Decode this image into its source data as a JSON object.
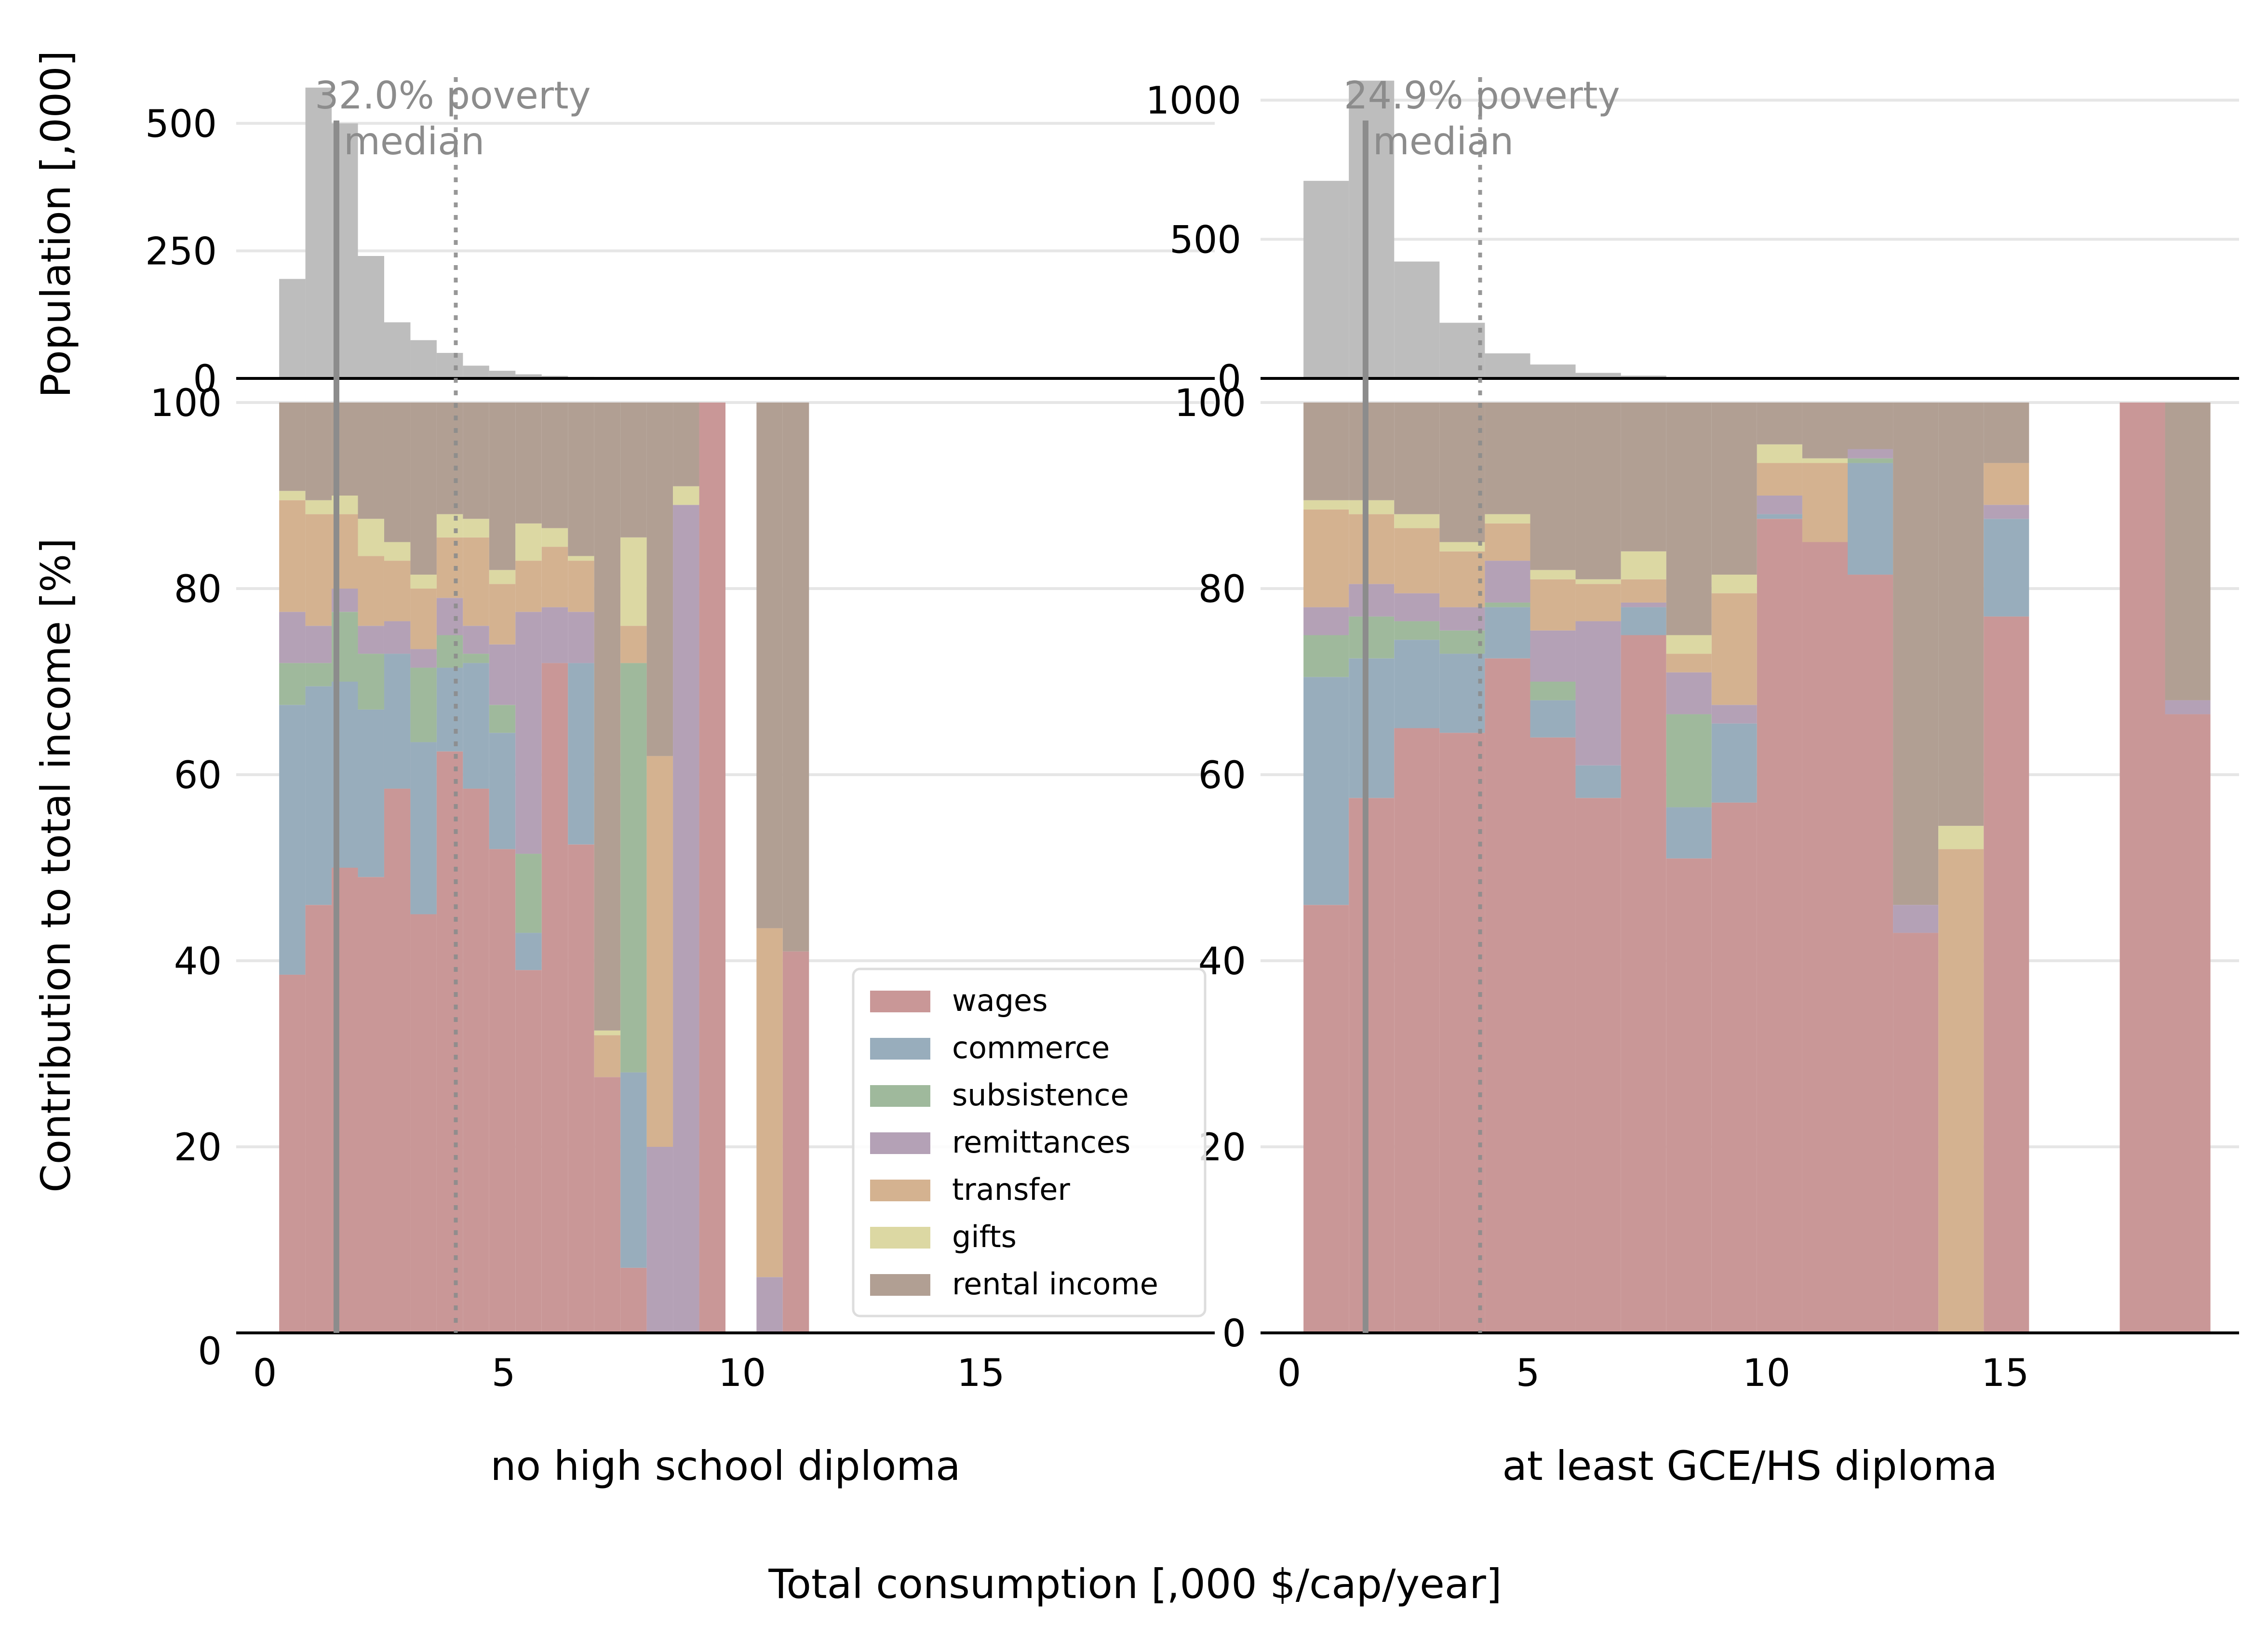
{
  "figure": {
    "ylabel_top": "Population [,000]",
    "ylabel_bottom": "Contribution to total income [%]",
    "xlabel": "Total consumption [,000 $/cap/year]"
  },
  "legend": {
    "placement": "lower-right of left panel",
    "entries": [
      "wages",
      "commerce",
      "subsistence",
      "remittances",
      "transfer",
      "gifts",
      "rental income"
    ]
  },
  "colors": {
    "wages": "#c99797",
    "commerce": "#98adbc",
    "subsistence": "#9fb99c",
    "remittances": "#b4a1b6",
    "transfer": "#d4b290",
    "gifts": "#dcd8a3",
    "rental income": "#b19f93",
    "histogram": "#bdbdbd",
    "poverty_line": "#8c8c8c",
    "median_line": "#8c8c8c",
    "annotation": "#8c8c8c",
    "grid": "#e6e6e6"
  },
  "chart_data": [
    {
      "type": "bar",
      "subtitle": "no high school diploma",
      "histogram": {
        "ylim": [
          0,
          600
        ],
        "yticks": [
          0,
          250,
          500
        ],
        "bin_width": 0.55,
        "bin_starts": [
          0.3,
          0.85,
          1.4,
          1.95,
          2.5,
          3.05,
          3.6,
          4.15,
          4.7,
          5.25,
          5.8,
          6.35
        ],
        "values": [
          195,
          570,
          500,
          240,
          110,
          75,
          50,
          25,
          15,
          8,
          5,
          3
        ]
      },
      "annotation": {
        "text_line1": "32.0% poverty",
        "text_line2": "median",
        "poverty_x": 1.5,
        "median_x": 4.0
      },
      "stack": {
        "ylim": [
          0,
          100
        ],
        "yticks": [
          0,
          20,
          40,
          60,
          80,
          100
        ],
        "xticks": [
          0,
          5,
          10,
          15
        ],
        "xlim": [
          -0.6,
          19.9
        ],
        "series_order": [
          "wages",
          "commerce",
          "subsistence",
          "remittances",
          "transfer",
          "gifts",
          "rental income"
        ],
        "bins": [
          {
            "x0": 0.3,
            "x1": 0.85,
            "wages": 38.5,
            "commerce": 29,
            "subsistence": 4.5,
            "remittances": 5.5,
            "transfer": 12,
            "gifts": 1,
            "rental income": 9.5
          },
          {
            "x0": 0.85,
            "x1": 1.4,
            "wages": 46,
            "commerce": 23.5,
            "subsistence": 2.5,
            "remittances": 4,
            "transfer": 12,
            "gifts": 1.5,
            "rental income": 10.5
          },
          {
            "x0": 1.4,
            "x1": 1.95,
            "wages": 50,
            "commerce": 20,
            "subsistence": 7.5,
            "remittances": 2.5,
            "transfer": 8,
            "gifts": 2,
            "rental income": 10
          },
          {
            "x0": 1.95,
            "x1": 2.5,
            "wages": 49,
            "commerce": 18,
            "subsistence": 6,
            "remittances": 3,
            "transfer": 7.5,
            "gifts": 4,
            "rental income": 12.5
          },
          {
            "x0": 2.5,
            "x1": 3.05,
            "wages": 58.5,
            "commerce": 14.5,
            "subsistence": 0,
            "remittances": 3.5,
            "transfer": 6.5,
            "gifts": 2,
            "rental income": 15
          },
          {
            "x0": 3.05,
            "x1": 3.6,
            "wages": 45,
            "commerce": 18.5,
            "subsistence": 8,
            "remittances": 2,
            "transfer": 6.5,
            "gifts": 1.5,
            "rental income": 18.5
          },
          {
            "x0": 3.6,
            "x1": 4.15,
            "wages": 62.5,
            "commerce": 9,
            "subsistence": 3.5,
            "remittances": 4,
            "transfer": 6.5,
            "gifts": 2.5,
            "rental income": 12
          },
          {
            "x0": 4.15,
            "x1": 4.7,
            "wages": 58.5,
            "commerce": 13.5,
            "subsistence": 1,
            "remittances": 3,
            "transfer": 9.5,
            "gifts": 2,
            "rental income": 12.5
          },
          {
            "x0": 4.7,
            "x1": 5.25,
            "wages": 52,
            "commerce": 12.5,
            "subsistence": 3,
            "remittances": 6.5,
            "transfer": 6.5,
            "gifts": 1.5,
            "rental income": 18
          },
          {
            "x0": 5.25,
            "x1": 5.8,
            "wages": 39,
            "commerce": 4,
            "subsistence": 8.5,
            "remittances": 26,
            "transfer": 5.5,
            "gifts": 4,
            "rental income": 13
          },
          {
            "x0": 5.8,
            "x1": 6.35,
            "wages": 72,
            "commerce": 0,
            "subsistence": 0,
            "remittances": 6,
            "transfer": 6.5,
            "gifts": 2,
            "rental income": 13.5
          },
          {
            "x0": 6.35,
            "x1": 6.9,
            "wages": 52.5,
            "commerce": 19.5,
            "subsistence": 0,
            "remittances": 5.5,
            "transfer": 5.5,
            "gifts": 0.5,
            "rental income": 16.5
          },
          {
            "x0": 6.9,
            "x1": 7.45,
            "wages": 27.5,
            "commerce": 0,
            "subsistence": 0,
            "remittances": 0,
            "transfer": 4.5,
            "gifts": 0.5,
            "rental income": 67.5
          },
          {
            "x0": 7.45,
            "x1": 8.0,
            "wages": 7,
            "commerce": 21,
            "subsistence": 44,
            "remittances": 0,
            "transfer": 4,
            "gifts": 9.5,
            "rental income": 14.5
          },
          {
            "x0": 8.0,
            "x1": 8.55,
            "wages": 0,
            "commerce": 0,
            "subsistence": 0,
            "remittances": 20,
            "transfer": 42,
            "gifts": 0,
            "rental income": 38
          },
          {
            "x0": 8.55,
            "x1": 9.1,
            "wages": 0,
            "commerce": 0,
            "subsistence": 0,
            "remittances": 89,
            "transfer": 0,
            "gifts": 2,
            "rental income": 9
          },
          {
            "x0": 9.1,
            "x1": 9.65,
            "wages": 100,
            "commerce": 0,
            "subsistence": 0,
            "remittances": 0,
            "transfer": 0,
            "gifts": 0,
            "rental income": 0
          },
          {
            "x0": 10.3,
            "x1": 10.85,
            "wages": 0,
            "commerce": 0,
            "subsistence": 0,
            "remittances": 6,
            "transfer": 37.5,
            "gifts": 0,
            "rental income": 56.5
          },
          {
            "x0": 10.85,
            "x1": 11.4,
            "wages": 41,
            "commerce": 0,
            "subsistence": 0,
            "remittances": 0,
            "transfer": 0,
            "gifts": 0,
            "rental income": 59
          }
        ]
      }
    },
    {
      "type": "bar",
      "subtitle": "at least GCE/HS diploma",
      "histogram": {
        "ylim": [
          0,
          1100
        ],
        "yticks": [
          0,
          500,
          1000
        ],
        "bin_width": 0.95,
        "bin_starts": [
          0.3,
          1.25,
          2.2,
          3.15,
          4.1,
          5.05,
          6.0,
          6.95,
          7.9,
          8.85
        ],
        "values": [
          710,
          1070,
          420,
          200,
          90,
          50,
          20,
          10,
          5,
          3
        ]
      },
      "annotation": {
        "text_line1": "24.9% poverty",
        "text_line2": "median",
        "poverty_x": 1.6,
        "median_x": 4.0
      },
      "stack": {
        "ylim": [
          0,
          100
        ],
        "yticks": [
          0,
          20,
          40,
          60,
          80,
          100
        ],
        "xticks": [
          0,
          5,
          10,
          15
        ],
        "xlim": [
          -0.6,
          19.9
        ],
        "series_order": [
          "wages",
          "commerce",
          "subsistence",
          "remittances",
          "transfer",
          "gifts",
          "rental income"
        ],
        "bins": [
          {
            "x0": 0.3,
            "x1": 1.25,
            "wages": 46,
            "commerce": 24.5,
            "subsistence": 4.5,
            "remittances": 3,
            "transfer": 10.5,
            "gifts": 1,
            "rental income": 10.5
          },
          {
            "x0": 1.25,
            "x1": 2.2,
            "wages": 57.5,
            "commerce": 15,
            "subsistence": 4.5,
            "remittances": 3.5,
            "transfer": 7.5,
            "gifts": 1.5,
            "rental income": 10.5
          },
          {
            "x0": 2.2,
            "x1": 3.15,
            "wages": 65,
            "commerce": 9.5,
            "subsistence": 2,
            "remittances": 3,
            "transfer": 7,
            "gifts": 1.5,
            "rental income": 12
          },
          {
            "x0": 3.15,
            "x1": 4.1,
            "wages": 64.5,
            "commerce": 8.5,
            "subsistence": 2.5,
            "remittances": 2.5,
            "transfer": 6,
            "gifts": 1,
            "rental income": 15
          },
          {
            "x0": 4.1,
            "x1": 5.05,
            "wages": 72.5,
            "commerce": 5.5,
            "subsistence": 0.5,
            "remittances": 4.5,
            "transfer": 4,
            "gifts": 1,
            "rental income": 12
          },
          {
            "x0": 5.05,
            "x1": 6.0,
            "wages": 64,
            "commerce": 4,
            "subsistence": 2,
            "remittances": 5.5,
            "transfer": 5.5,
            "gifts": 1,
            "rental income": 18
          },
          {
            "x0": 6.0,
            "x1": 6.95,
            "wages": 57.5,
            "commerce": 3.5,
            "subsistence": 0,
            "remittances": 15.5,
            "transfer": 4,
            "gifts": 0.5,
            "rental income": 19
          },
          {
            "x0": 6.95,
            "x1": 7.9,
            "wages": 75,
            "commerce": 3,
            "subsistence": 0,
            "remittances": 0.5,
            "transfer": 2.5,
            "gifts": 3,
            "rental income": 16
          },
          {
            "x0": 7.9,
            "x1": 8.85,
            "wages": 51,
            "commerce": 5.5,
            "subsistence": 10,
            "remittances": 4.5,
            "transfer": 2,
            "gifts": 2,
            "rental income": 25
          },
          {
            "x0": 8.85,
            "x1": 9.8,
            "wages": 57,
            "commerce": 8.5,
            "subsistence": 0,
            "remittances": 2,
            "transfer": 12,
            "gifts": 2,
            "rental income": 18.5
          },
          {
            "x0": 9.8,
            "x1": 10.75,
            "wages": 87.5,
            "commerce": 0.5,
            "subsistence": 0,
            "remittances": 2,
            "transfer": 3.5,
            "gifts": 2,
            "rental income": 4.5
          },
          {
            "x0": 10.75,
            "x1": 11.7,
            "wages": 85,
            "commerce": 0,
            "subsistence": 0,
            "remittances": 0,
            "transfer": 8.5,
            "gifts": 0.5,
            "rental income": 6
          },
          {
            "x0": 11.7,
            "x1": 12.65,
            "wages": 81.5,
            "commerce": 12,
            "subsistence": 0.5,
            "remittances": 1,
            "transfer": 0,
            "gifts": 0,
            "rental income": 5
          },
          {
            "x0": 12.65,
            "x1": 13.6,
            "wages": 43,
            "commerce": 0,
            "subsistence": 0,
            "remittances": 3,
            "transfer": 0,
            "gifts": 0,
            "rental income": 54
          },
          {
            "x0": 13.6,
            "x1": 14.55,
            "wages": 0,
            "commerce": 0,
            "subsistence": 0,
            "remittances": 0,
            "transfer": 52,
            "gifts": 2.5,
            "rental income": 45.5
          },
          {
            "x0": 14.55,
            "x1": 15.5,
            "wages": 77,
            "commerce": 10.5,
            "subsistence": 0,
            "remittances": 1.5,
            "transfer": 4.5,
            "gifts": 0,
            "rental income": 6.5
          },
          {
            "x0": 17.4,
            "x1": 18.35,
            "wages": 100,
            "commerce": 0,
            "subsistence": 0,
            "remittances": 0,
            "transfer": 0,
            "gifts": 0,
            "rental income": 0
          },
          {
            "x0": 18.35,
            "x1": 19.3,
            "wages": 66.5,
            "commerce": 0,
            "subsistence": 0,
            "remittances": 1.5,
            "transfer": 0,
            "gifts": 0,
            "rental income": 32
          }
        ]
      }
    }
  ]
}
